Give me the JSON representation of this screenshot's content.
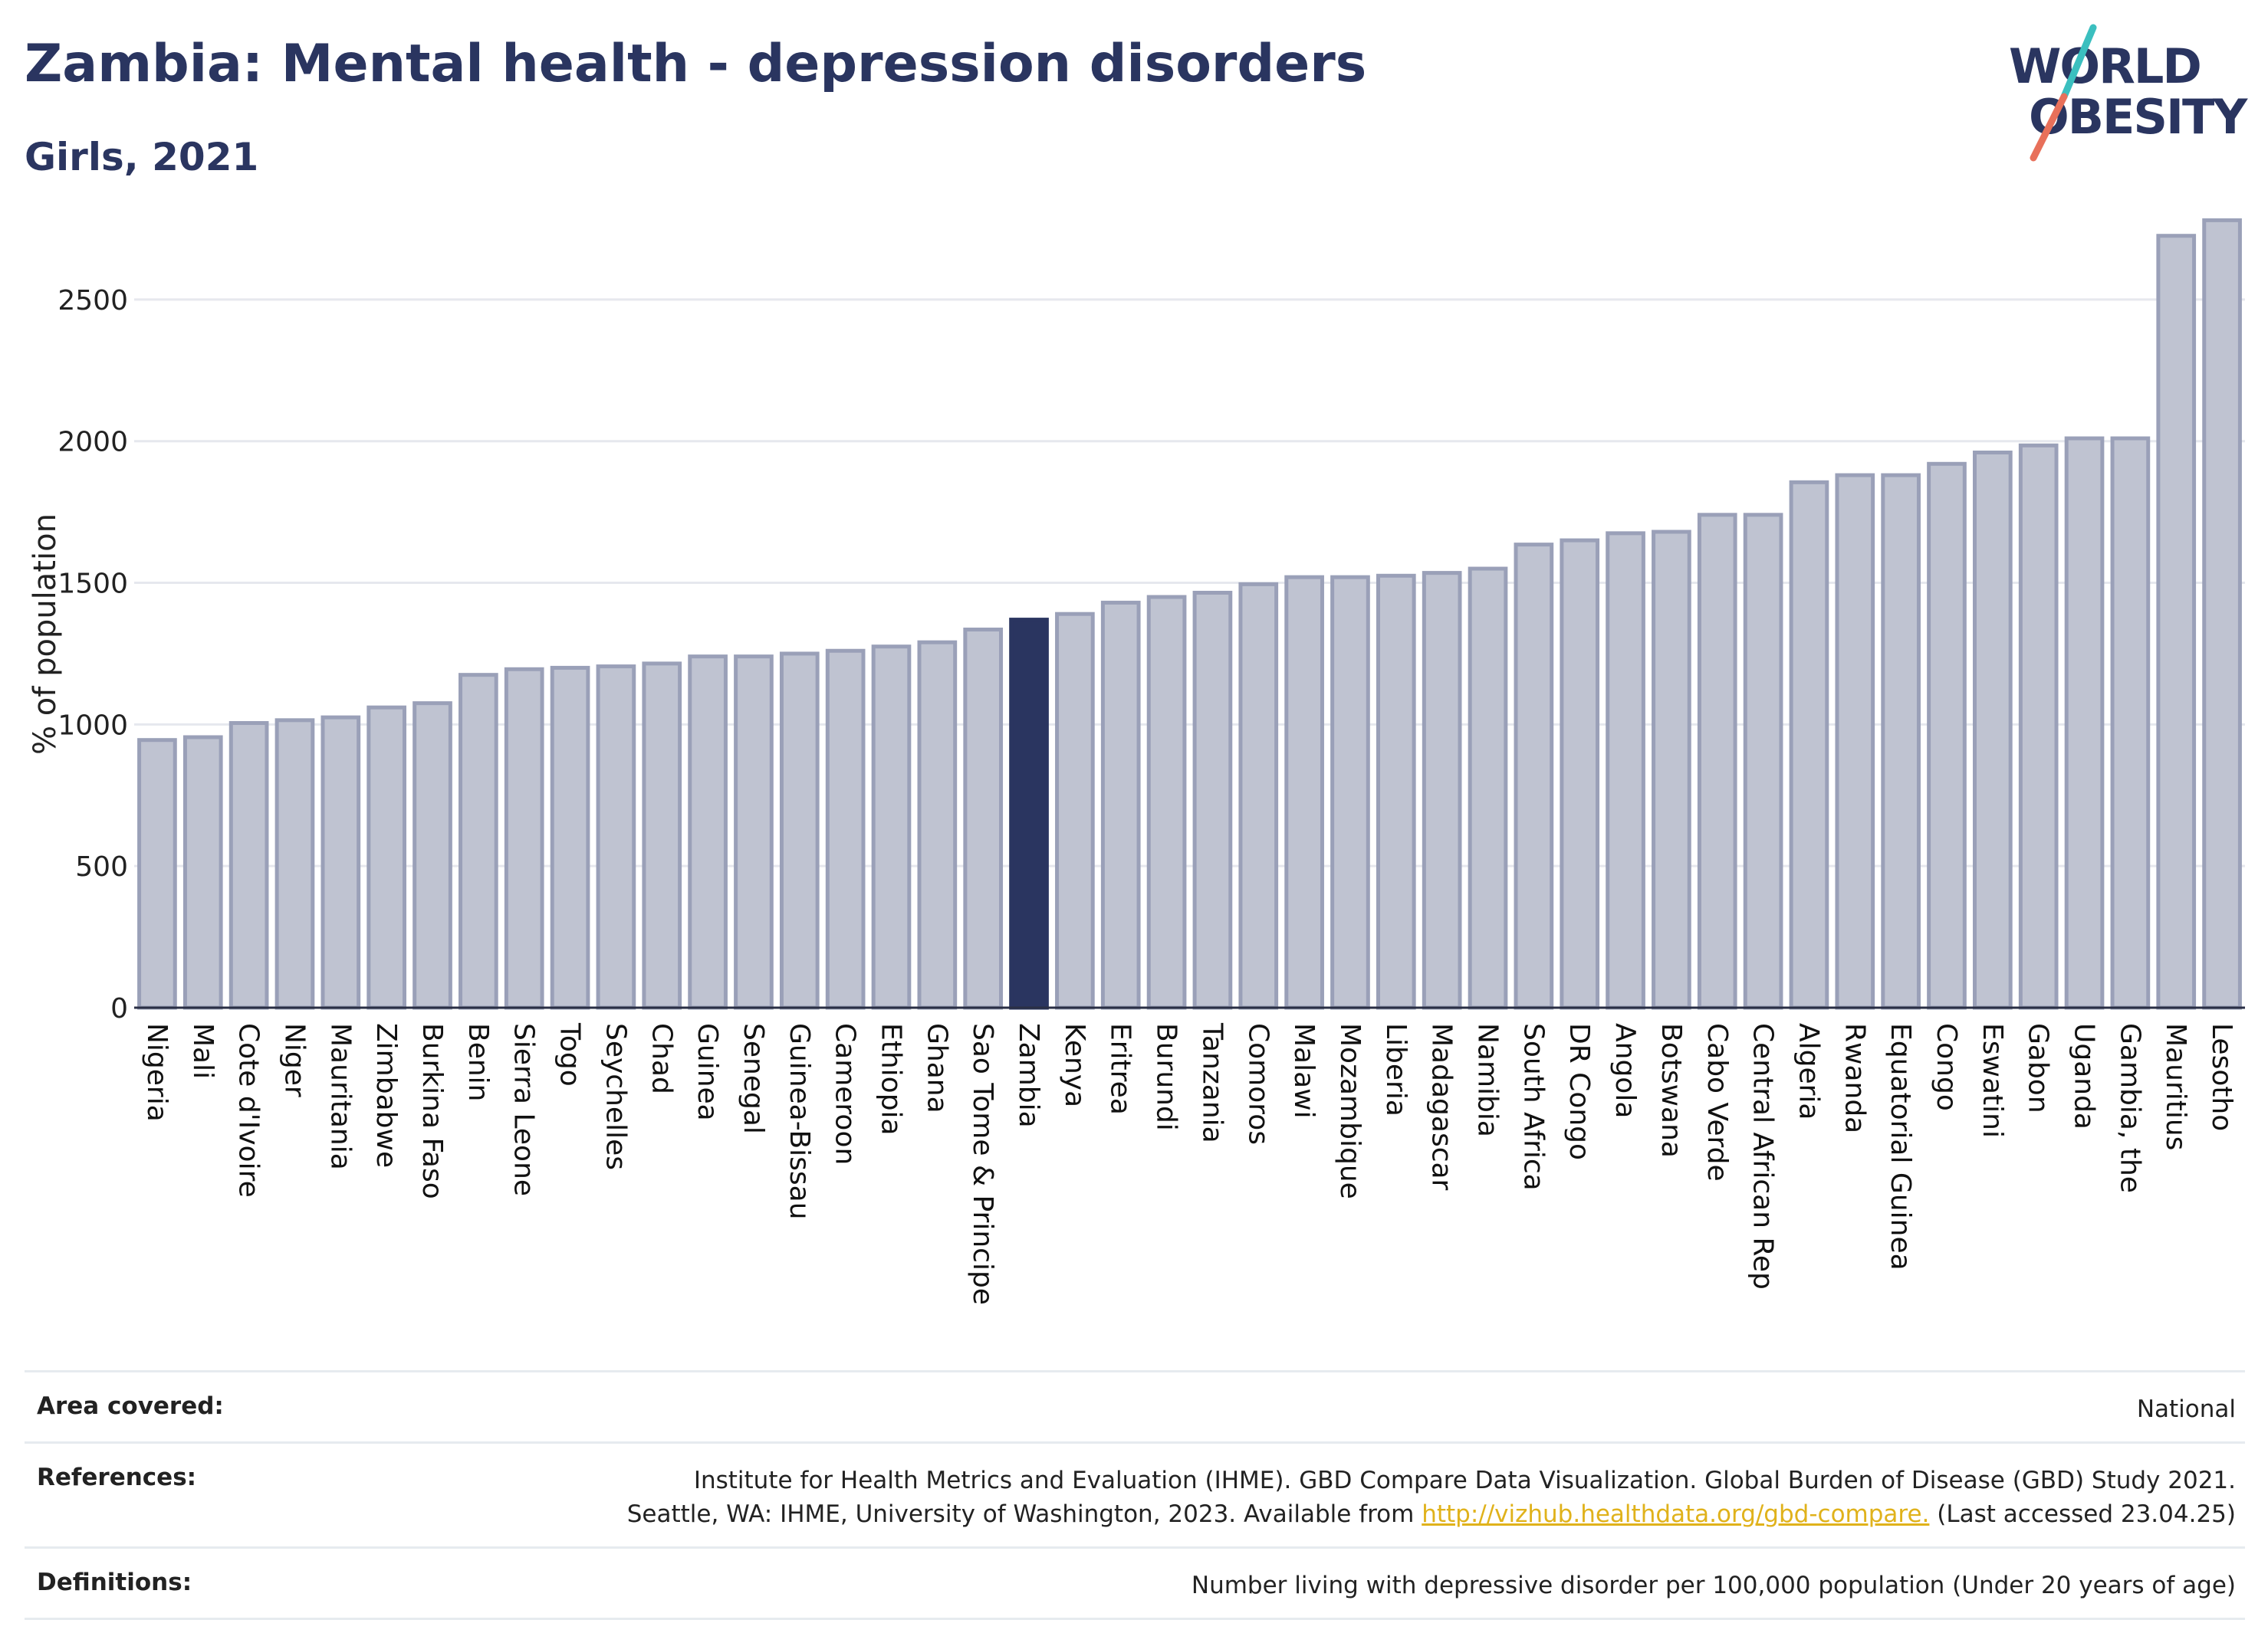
{
  "header": {
    "title": "Zambia: Mental health - depression disorders",
    "subtitle": "Girls, 2021"
  },
  "logo": {
    "line1": "WORLD",
    "line2": "OBESITY"
  },
  "colors": {
    "bar": "#bfc3d1",
    "bar_border": "#9aa0b8",
    "highlight": "#2a3560",
    "grid": "#e6e8ee",
    "link": "#e0b21b"
  },
  "chart_data": {
    "type": "bar",
    "title": "Zambia: Mental health - depression disorders",
    "subtitle": "Girls, 2021",
    "xlabel": "",
    "ylabel": "% of population",
    "ylim": [
      0,
      2800
    ],
    "yticks": [
      0,
      500,
      1000,
      1500,
      2000,
      2500
    ],
    "highlight": "Zambia",
    "grid": true,
    "categories": [
      "Nigeria",
      "Mali",
      "Cote d'Ivoire",
      "Niger",
      "Mauritania",
      "Zimbabwe",
      "Burkina Faso",
      "Benin",
      "Sierra Leone",
      "Togo",
      "Seychelles",
      "Chad",
      "Guinea",
      "Senegal",
      "Guinea-Bissau",
      "Cameroon",
      "Ethiopia",
      "Ghana",
      "Sao Tome & Principe",
      "Zambia",
      "Kenya",
      "Eritrea",
      "Burundi",
      "Tanzania",
      "Comoros",
      "Malawi",
      "Mozambique",
      "Liberia",
      "Madagascar",
      "Namibia",
      "South Africa",
      "DR Congo",
      "Angola",
      "Botswana",
      "Cabo Verde",
      "Central African Rep",
      "Algeria",
      "Rwanda",
      "Equatorial Guinea",
      "Congo",
      "Eswatini",
      "Gabon",
      "Uganda",
      "Gambia, the",
      "Mauritius",
      "Lesotho"
    ],
    "values": [
      945,
      955,
      1005,
      1015,
      1025,
      1060,
      1075,
      1175,
      1195,
      1200,
      1205,
      1215,
      1240,
      1240,
      1250,
      1260,
      1275,
      1290,
      1335,
      1370,
      1390,
      1430,
      1450,
      1465,
      1495,
      1520,
      1520,
      1525,
      1535,
      1550,
      1635,
      1650,
      1675,
      1680,
      1740,
      1740,
      1855,
      1880,
      1880,
      1920,
      1960,
      1985,
      2010,
      2010,
      2725,
      2780
    ]
  },
  "footer": {
    "rows": [
      {
        "label": "Area covered:",
        "lines": [
          "National"
        ]
      },
      {
        "label": "References:",
        "lines": [
          "Institute for Health Metrics and Evaluation (IHME). GBD Compare Data Visualization. Global Burden of Disease (GBD) Study 2021.",
          "Seattle, WA: IHME, University of Washington, 2023. Available from "
        ],
        "link": "http://vizhub.healthdata.org/gbd-compare.",
        "after_link": " (Last accessed 23.04.25)"
      },
      {
        "label": "Definitions:",
        "lines": [
          "Number living with depressive disorder per 100,000 population (Under 20 years of age)"
        ]
      }
    ]
  }
}
